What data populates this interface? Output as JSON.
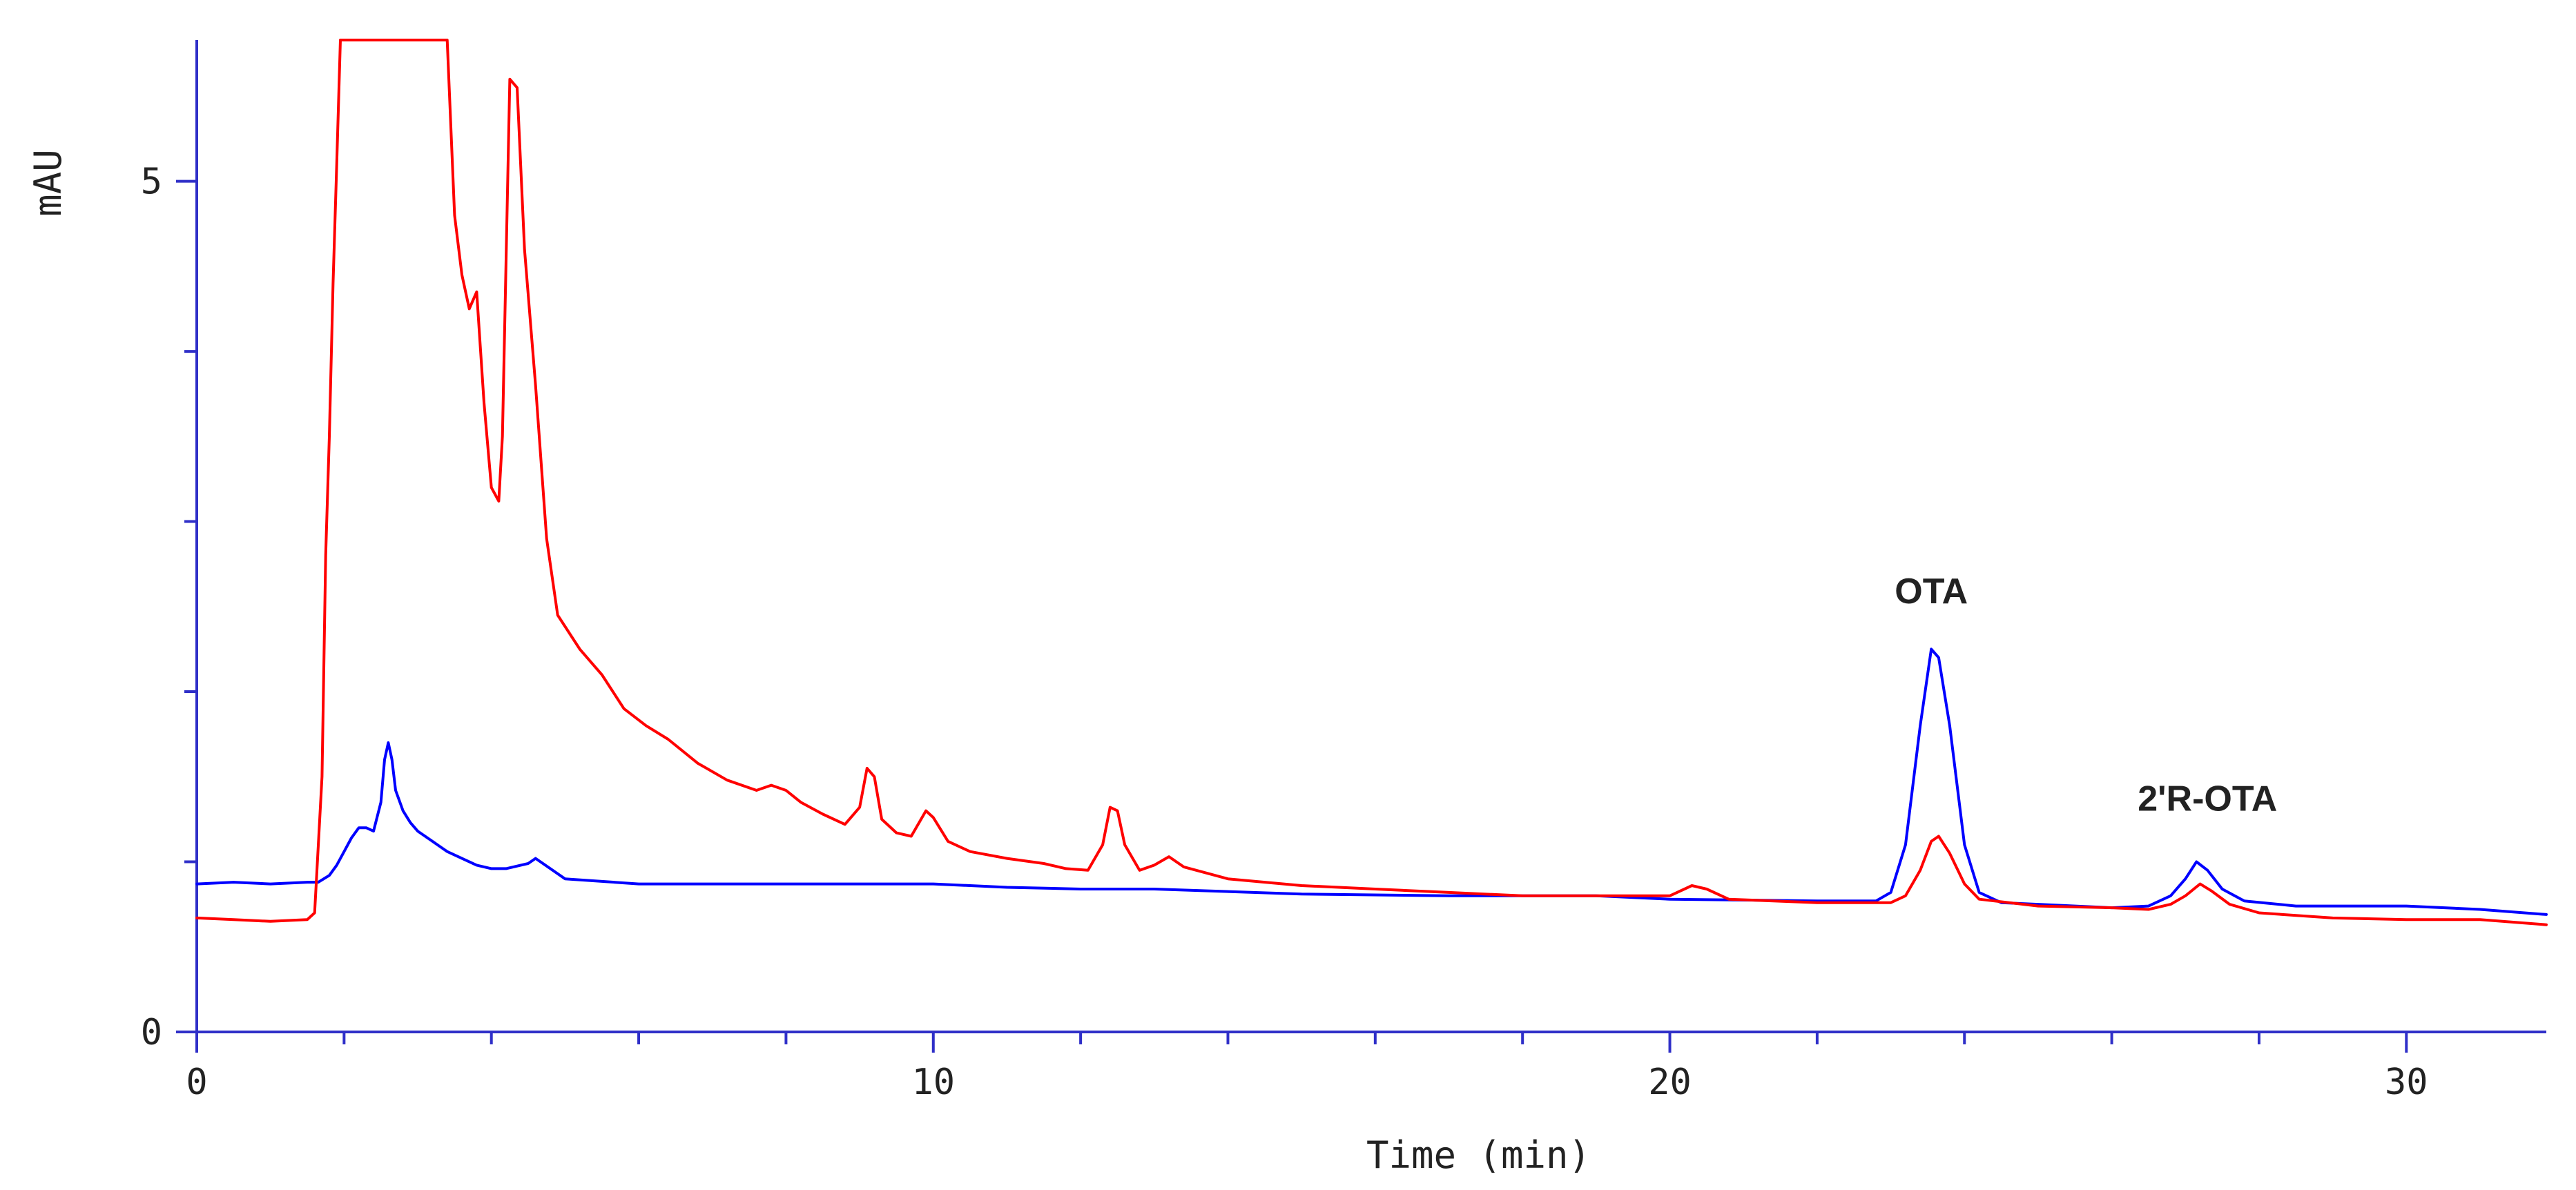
{
  "chart_data": {
    "type": "line",
    "title": "",
    "xlabel": "Time (min)",
    "ylabel": "mAU",
    "xlim": [
      0,
      31.9
    ],
    "ylim": [
      0,
      5.83
    ],
    "x_major_ticks": [
      0,
      10,
      20,
      30
    ],
    "x_major_labels": [
      "0",
      "10",
      "20",
      "30"
    ],
    "x_minor_step": 2,
    "y_major_ticks": [
      0,
      5
    ],
    "y_major_labels": [
      "0",
      "5"
    ],
    "y_minor_step": 1,
    "grid": false,
    "colors": {
      "axis": "#2f2fc8",
      "text": "#222222",
      "annotation": "#222222"
    },
    "series": [
      {
        "color": "#0000ff",
        "points": [
          [
            0,
            0.87
          ],
          [
            0.5,
            0.88
          ],
          [
            1.0,
            0.87
          ],
          [
            1.5,
            0.88
          ],
          [
            1.65,
            0.88
          ],
          [
            1.8,
            0.92
          ],
          [
            1.9,
            0.98
          ],
          [
            2.0,
            1.06
          ],
          [
            2.1,
            1.14
          ],
          [
            2.2,
            1.2
          ],
          [
            2.3,
            1.2
          ],
          [
            2.4,
            1.18
          ],
          [
            2.5,
            1.35
          ],
          [
            2.55,
            1.6
          ],
          [
            2.6,
            1.7
          ],
          [
            2.65,
            1.6
          ],
          [
            2.7,
            1.42
          ],
          [
            2.8,
            1.3
          ],
          [
            2.9,
            1.23
          ],
          [
            3.0,
            1.18
          ],
          [
            3.2,
            1.12
          ],
          [
            3.4,
            1.06
          ],
          [
            3.6,
            1.02
          ],
          [
            3.8,
            0.98
          ],
          [
            4.0,
            0.96
          ],
          [
            4.2,
            0.96
          ],
          [
            4.5,
            0.99
          ],
          [
            4.6,
            1.02
          ],
          [
            4.7,
            0.99
          ],
          [
            5.0,
            0.9
          ],
          [
            6.0,
            0.87
          ],
          [
            8.0,
            0.87
          ],
          [
            9.0,
            0.87
          ],
          [
            10.0,
            0.87
          ],
          [
            11.0,
            0.85
          ],
          [
            12.0,
            0.84
          ],
          [
            13.0,
            0.84
          ],
          [
            15.0,
            0.81
          ],
          [
            17.0,
            0.8
          ],
          [
            19.0,
            0.8
          ],
          [
            20.0,
            0.78
          ],
          [
            22.0,
            0.77
          ],
          [
            22.8,
            0.77
          ],
          [
            23.0,
            0.82
          ],
          [
            23.2,
            1.1
          ],
          [
            23.4,
            1.8
          ],
          [
            23.55,
            2.25
          ],
          [
            23.65,
            2.2
          ],
          [
            23.8,
            1.8
          ],
          [
            24.0,
            1.1
          ],
          [
            24.2,
            0.82
          ],
          [
            24.5,
            0.76
          ],
          [
            25.0,
            0.75
          ],
          [
            26.0,
            0.73
          ],
          [
            26.5,
            0.74
          ],
          [
            26.8,
            0.8
          ],
          [
            27.0,
            0.9
          ],
          [
            27.15,
            1.0
          ],
          [
            27.3,
            0.95
          ],
          [
            27.5,
            0.84
          ],
          [
            27.8,
            0.77
          ],
          [
            28.5,
            0.74
          ],
          [
            30.0,
            0.74
          ],
          [
            31.0,
            0.72
          ],
          [
            31.9,
            0.69
          ]
        ]
      },
      {
        "color": "#ff0000",
        "points": [
          [
            0,
            0.67
          ],
          [
            0.5,
            0.66
          ],
          [
            1.0,
            0.65
          ],
          [
            1.5,
            0.66
          ],
          [
            1.6,
            0.7
          ],
          [
            1.7,
            1.5
          ],
          [
            1.75,
            2.8
          ],
          [
            1.8,
            3.5
          ],
          [
            1.85,
            4.4
          ],
          [
            1.9,
            5.1
          ],
          [
            1.95,
            5.83
          ],
          [
            3.4,
            5.83
          ],
          [
            3.5,
            4.8
          ],
          [
            3.6,
            4.45
          ],
          [
            3.7,
            4.25
          ],
          [
            3.8,
            4.35
          ],
          [
            3.9,
            3.7
          ],
          [
            4.0,
            3.2
          ],
          [
            4.1,
            3.12
          ],
          [
            4.15,
            3.5
          ],
          [
            4.25,
            5.6
          ],
          [
            4.35,
            5.55
          ],
          [
            4.45,
            4.6
          ],
          [
            4.6,
            3.8
          ],
          [
            4.75,
            2.9
          ],
          [
            4.9,
            2.45
          ],
          [
            5.2,
            2.25
          ],
          [
            5.5,
            2.1
          ],
          [
            5.8,
            1.9
          ],
          [
            6.1,
            1.8
          ],
          [
            6.4,
            1.72
          ],
          [
            6.8,
            1.58
          ],
          [
            7.2,
            1.48
          ],
          [
            7.6,
            1.42
          ],
          [
            7.8,
            1.45
          ],
          [
            8.0,
            1.42
          ],
          [
            8.2,
            1.35
          ],
          [
            8.5,
            1.28
          ],
          [
            8.8,
            1.22
          ],
          [
            9.0,
            1.32
          ],
          [
            9.1,
            1.55
          ],
          [
            9.2,
            1.5
          ],
          [
            9.3,
            1.25
          ],
          [
            9.5,
            1.17
          ],
          [
            9.7,
            1.15
          ],
          [
            9.9,
            1.3
          ],
          [
            10.0,
            1.26
          ],
          [
            10.2,
            1.12
          ],
          [
            10.5,
            1.06
          ],
          [
            11.0,
            1.02
          ],
          [
            11.5,
            0.99
          ],
          [
            11.8,
            0.96
          ],
          [
            12.1,
            0.95
          ],
          [
            12.3,
            1.1
          ],
          [
            12.4,
            1.32
          ],
          [
            12.5,
            1.3
          ],
          [
            12.6,
            1.1
          ],
          [
            12.8,
            0.95
          ],
          [
            13.0,
            0.98
          ],
          [
            13.2,
            1.03
          ],
          [
            13.4,
            0.97
          ],
          [
            14.0,
            0.9
          ],
          [
            15.0,
            0.86
          ],
          [
            16.0,
            0.84
          ],
          [
            17.0,
            0.82
          ],
          [
            18.0,
            0.8
          ],
          [
            19.0,
            0.8
          ],
          [
            20.0,
            0.8
          ],
          [
            20.3,
            0.86
          ],
          [
            20.5,
            0.84
          ],
          [
            20.8,
            0.78
          ],
          [
            22.0,
            0.76
          ],
          [
            23.0,
            0.76
          ],
          [
            23.2,
            0.8
          ],
          [
            23.4,
            0.95
          ],
          [
            23.55,
            1.12
          ],
          [
            23.65,
            1.15
          ],
          [
            23.8,
            1.05
          ],
          [
            24.0,
            0.87
          ],
          [
            24.2,
            0.78
          ],
          [
            25.0,
            0.74
          ],
          [
            26.0,
            0.73
          ],
          [
            26.5,
            0.72
          ],
          [
            26.8,
            0.75
          ],
          [
            27.0,
            0.8
          ],
          [
            27.2,
            0.87
          ],
          [
            27.35,
            0.83
          ],
          [
            27.6,
            0.75
          ],
          [
            28.0,
            0.7
          ],
          [
            29.0,
            0.67
          ],
          [
            30.0,
            0.66
          ],
          [
            31.0,
            0.66
          ],
          [
            31.9,
            0.63
          ]
        ]
      }
    ],
    "annotations": [
      {
        "text": "OTA",
        "x": 23.55,
        "y": 2.52
      },
      {
        "text": "2'R-OTA",
        "x": 27.3,
        "y": 1.3
      }
    ]
  }
}
